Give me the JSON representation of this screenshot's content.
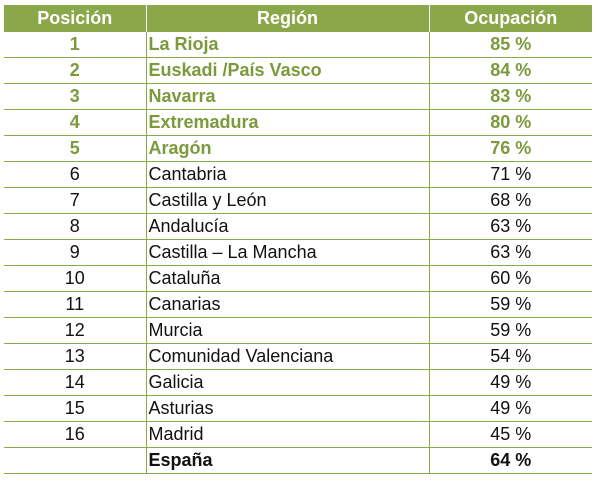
{
  "table": {
    "headers": {
      "position": "Posición",
      "region": "Región",
      "occupancy": "Ocupación"
    },
    "highlight_color": "#7c9a3c",
    "header_background": "#8aa849",
    "rows": [
      {
        "position": "1",
        "region": "La Rioja",
        "occupancy": "85 %",
        "highlight": true
      },
      {
        "position": "2",
        "region": "Euskadi /País Vasco",
        "occupancy": "84 %",
        "highlight": true
      },
      {
        "position": "3",
        "region": "Navarra",
        "occupancy": "83 %",
        "highlight": true
      },
      {
        "position": "4",
        "region": "Extremadura",
        "occupancy": "80 %",
        "highlight": true
      },
      {
        "position": "5",
        "region": "Aragón",
        "occupancy": "76 %",
        "highlight": true
      },
      {
        "position": "6",
        "region": "Cantabria",
        "occupancy": "71 %",
        "highlight": false
      },
      {
        "position": "7",
        "region": "Castilla y León",
        "occupancy": "68 %",
        "highlight": false
      },
      {
        "position": "8",
        "region": "Andalucía",
        "occupancy": "63 %",
        "highlight": false
      },
      {
        "position": "9",
        "region": "Castilla – La Mancha",
        "occupancy": "63 %",
        "highlight": false
      },
      {
        "position": "10",
        "region": "Cataluña",
        "occupancy": "60 %",
        "highlight": false
      },
      {
        "position": "11",
        "region": "Canarias",
        "occupancy": "59 %",
        "highlight": false
      },
      {
        "position": "12",
        "region": "Murcia",
        "occupancy": "59 %",
        "highlight": false
      },
      {
        "position": "13",
        "region": "Comunidad Valenciana",
        "occupancy": "54 %",
        "highlight": false
      },
      {
        "position": "14",
        "region": "Galicia",
        "occupancy": "49 %",
        "highlight": false
      },
      {
        "position": "15",
        "region": "Asturias",
        "occupancy": "49 %",
        "highlight": false
      },
      {
        "position": "16",
        "region": "Madrid",
        "occupancy": "45 %",
        "highlight": false
      }
    ],
    "total": {
      "position": "",
      "region": "España",
      "occupancy": "64 %"
    }
  }
}
